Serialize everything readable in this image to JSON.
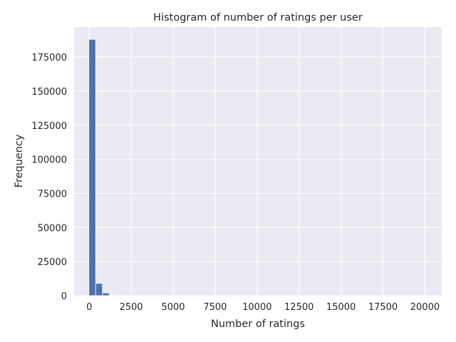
{
  "chart_data": {
    "type": "bar",
    "title": "Histogram of number of ratings per user",
    "xlabel": "Number of ratings",
    "ylabel": "Frequency",
    "xlim": [
      -900,
      21000
    ],
    "ylim": [
      0,
      197000
    ],
    "xticks": [
      0,
      2500,
      5000,
      7500,
      10000,
      12500,
      15000,
      17500,
      20000
    ],
    "yticks": [
      0,
      25000,
      50000,
      75000,
      100000,
      125000,
      150000,
      175000
    ],
    "bin_width": 405,
    "bin_edges": [
      -20,
      385,
      790,
      1195,
      1600,
      2005,
      2410,
      2815,
      3220,
      3625,
      4030,
      4435,
      4840,
      5245,
      5650,
      6055,
      6460,
      6865,
      7270,
      7675,
      8080,
      8485,
      8890,
      9295,
      9700,
      10105,
      10510,
      10915,
      11320,
      11725,
      12130,
      12535,
      12940,
      13345,
      13750,
      14155,
      14560,
      14965,
      15370,
      15775,
      16180,
      16585,
      16990,
      17395,
      17800,
      18205,
      18610,
      19015,
      19420,
      19825,
      20230
    ],
    "values": [
      188000,
      9000,
      2000,
      300,
      90,
      40,
      20,
      10,
      5,
      3,
      2,
      1,
      1,
      1,
      0,
      0,
      1,
      0,
      0,
      0,
      0,
      0,
      0,
      0,
      0,
      0,
      0,
      0,
      0,
      0,
      0,
      0,
      0,
      0,
      0,
      0,
      0,
      0,
      0,
      0,
      0,
      0,
      0,
      0,
      0,
      0,
      0,
      0,
      0,
      1
    ],
    "bar_color": "#4c72b0",
    "background_color": "#eaeaf2",
    "grid": true,
    "grid_color": "#ffffff"
  }
}
